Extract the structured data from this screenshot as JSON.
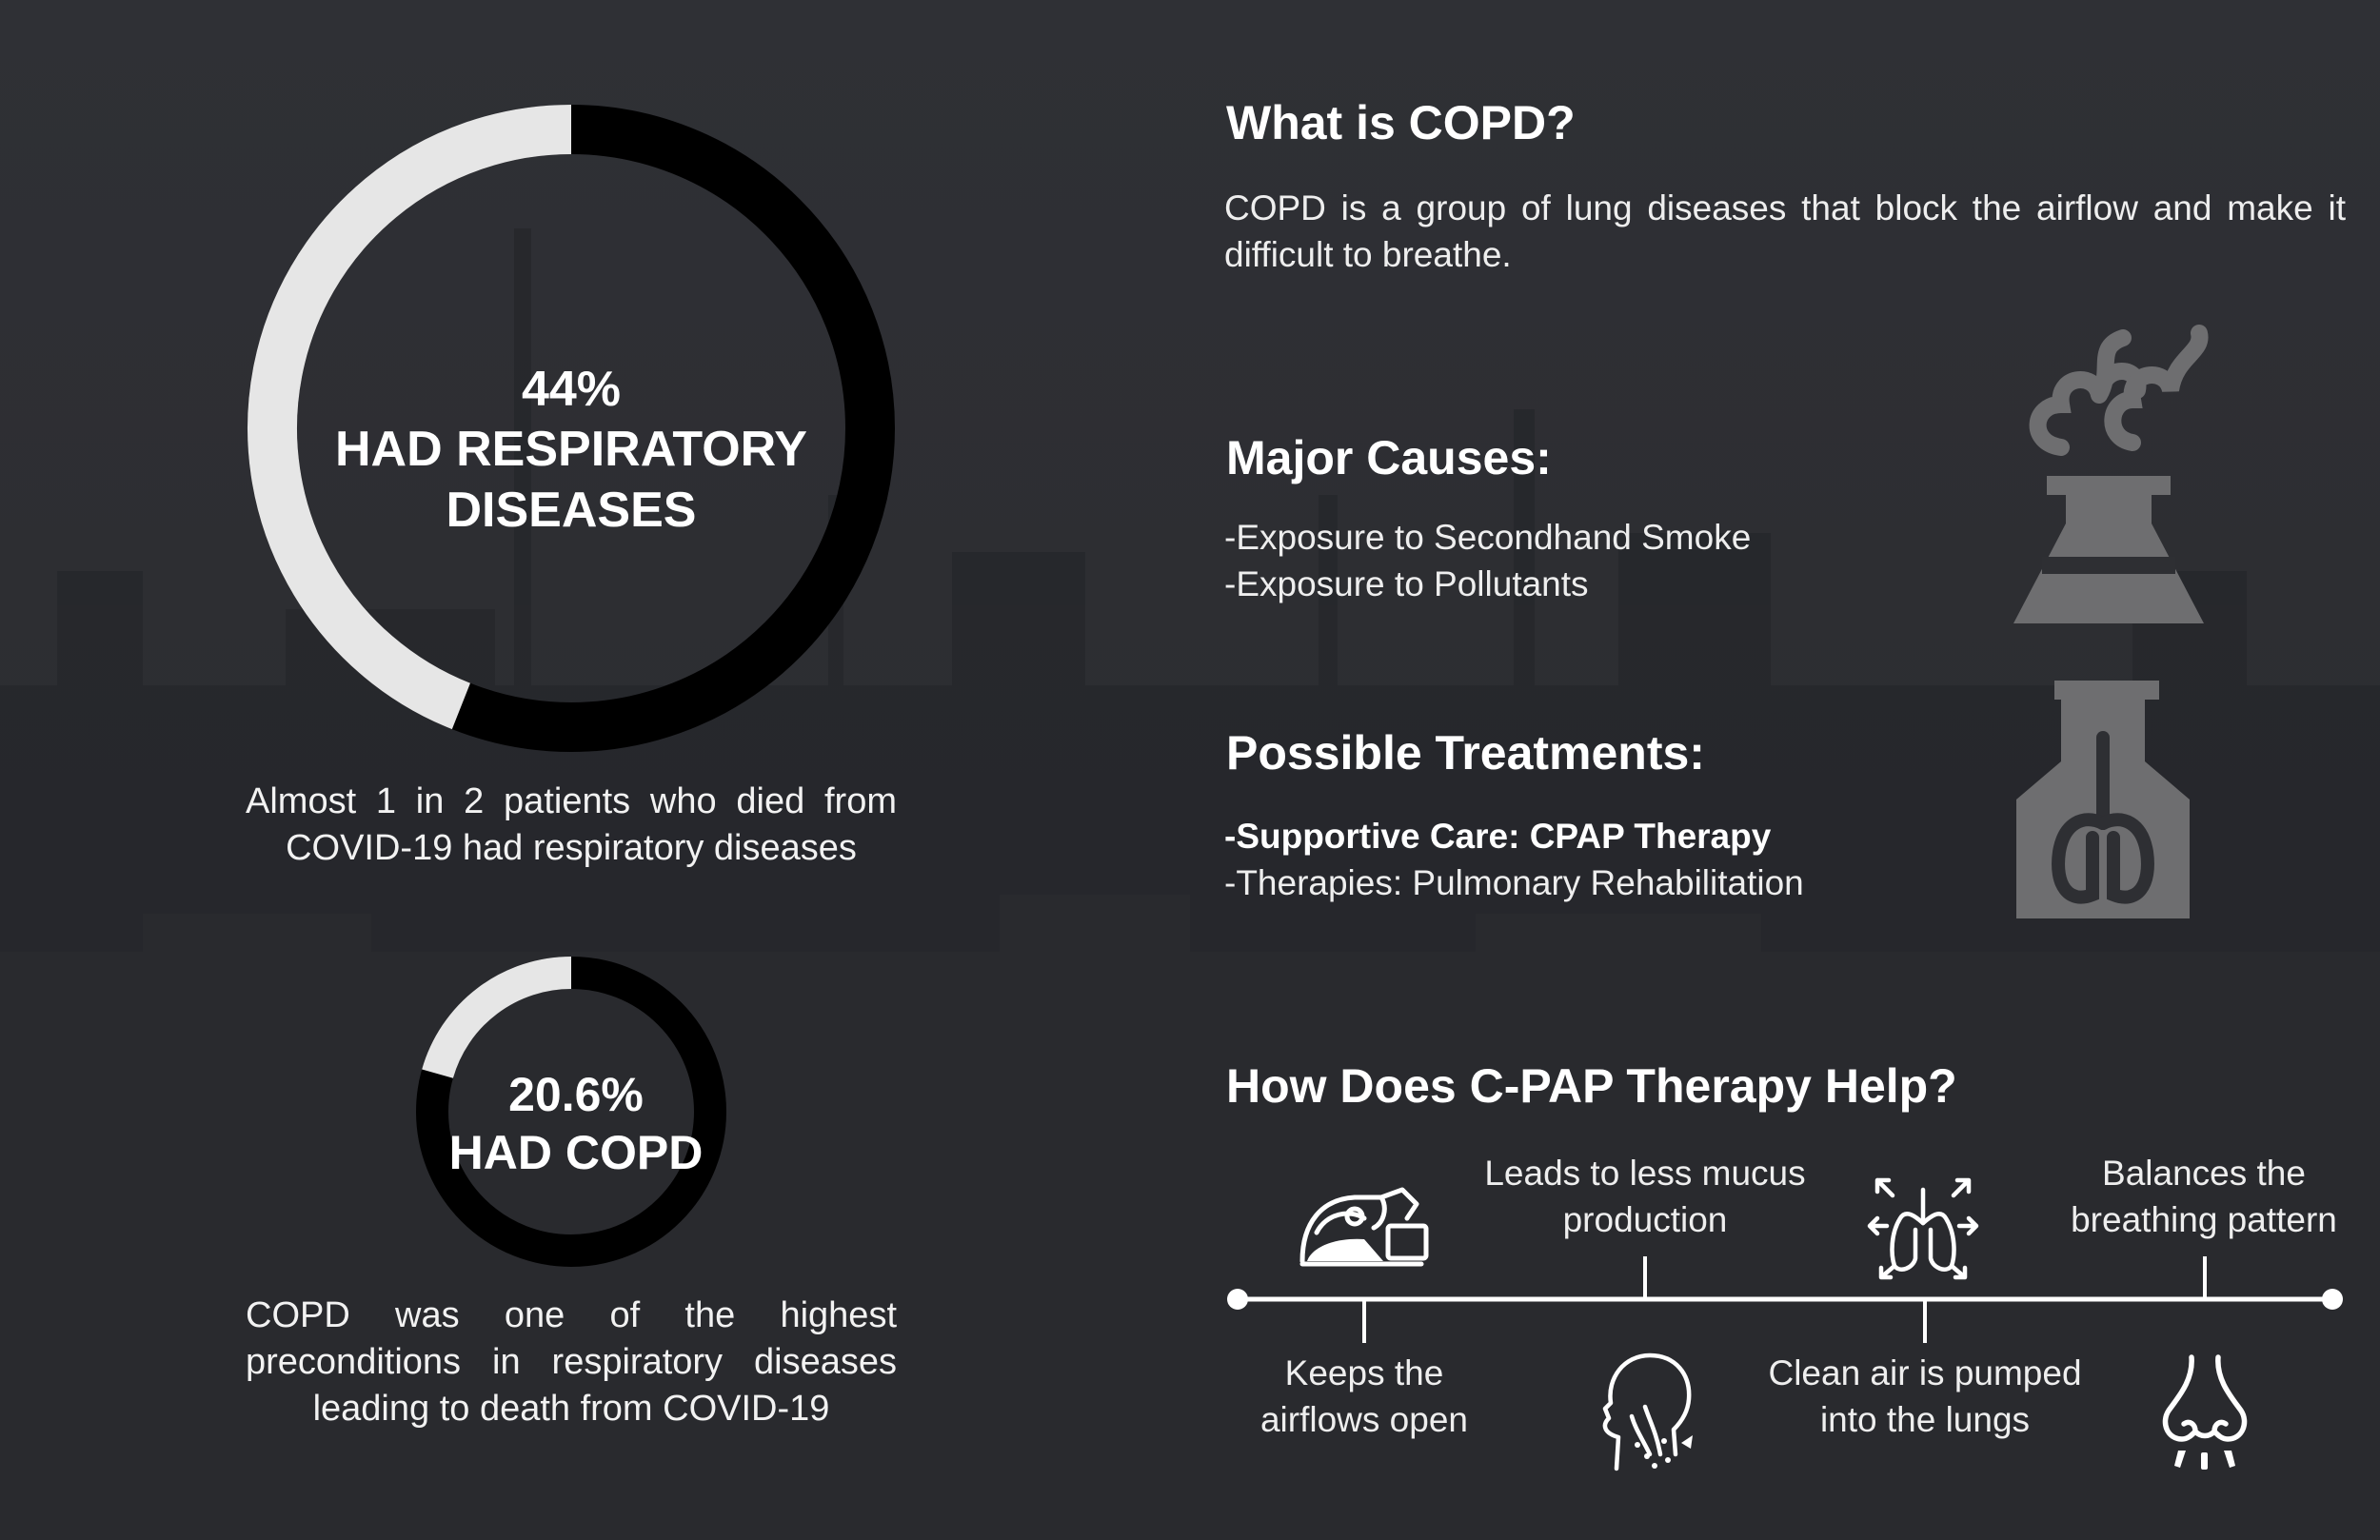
{
  "colors": {
    "background": "#2e2f33",
    "ring_filled": "#e6e6e6",
    "ring_empty": "#000000",
    "icon_gray": "#6e6e70",
    "text": "#ffffff"
  },
  "stats": [
    {
      "percent_value": 44,
      "percent_text": "44%",
      "label_line1": "HAD RESPIRATORY",
      "label_line2": "DISEASES",
      "caption": "Almost 1 in 2 patients who died from COVID-19 had respiratory diseases"
    },
    {
      "percent_value": 20.6,
      "percent_text": "20.6%",
      "label_line1": "HAD COPD",
      "caption": "COPD was one of the highest preconditions in respiratory diseases leading to death from COVID-19"
    }
  ],
  "what_is": {
    "heading": "What is COPD?",
    "text": "COPD is a group of lung diseases that block the airflow and make it difficult to breathe."
  },
  "causes": {
    "heading": "Major Causes:",
    "items": [
      "-Exposure to Secondhand Smoke",
      "-Exposure to Pollutants"
    ],
    "icon": "factory-smoke-icon"
  },
  "treatments": {
    "heading": "Possible Treatments:",
    "items": [
      "-Supportive Care: CPAP Therapy",
      "-Therapies: Pulmonary Rehabilitation"
    ],
    "icon": "lungs-flask-icon"
  },
  "cpap": {
    "heading": "How Does C-PAP Therapy Help?",
    "steps": [
      {
        "text": "Keeps the airflows open",
        "icon": "sleep-apnea-mask-icon"
      },
      {
        "text": "Leads to less mucus production",
        "icon": "throat-mucus-icon"
      },
      {
        "text": "Clean air is pumped into the lungs",
        "icon": "lungs-arrows-icon"
      },
      {
        "text": "Balances the breathing pattern",
        "icon": "nose-breathing-icon"
      }
    ]
  }
}
